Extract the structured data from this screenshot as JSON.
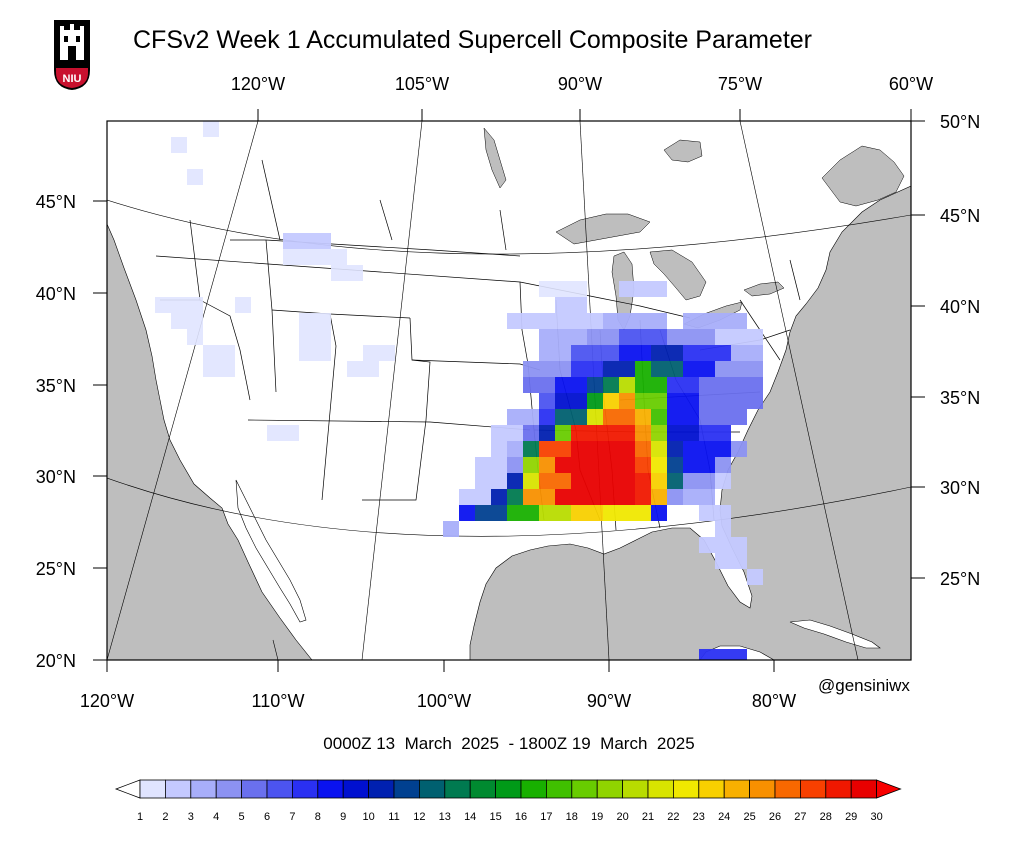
{
  "title": "CFSv2 Week 1 Accumulated Supercell Composite Parameter",
  "logo": {
    "text": "NIU",
    "colors": {
      "bg": "#000000",
      "red": "#c8102e",
      "white": "#ffffff"
    }
  },
  "date_range": "0000Z 13  March  2025  - 1800Z 19  March  2025",
  "credit": "@gensiniwx",
  "axes": {
    "top_lon_labels": [
      "120°W",
      "105°W",
      "90°W",
      "75°W",
      "60°W"
    ],
    "bottom_lon_labels": [
      "120°W",
      "110°W",
      "100°W",
      "90°W",
      "80°W"
    ],
    "left_lat_labels": [
      "45°N",
      "40°N",
      "35°N",
      "30°N",
      "25°N",
      "20°N"
    ],
    "right_lat_labels": [
      "50°N",
      "45°N",
      "40°N",
      "35°N",
      "30°N",
      "25°N"
    ]
  },
  "colorbar": {
    "labels": [
      "1",
      "2",
      "3",
      "4",
      "5",
      "6",
      "7",
      "8",
      "9",
      "10",
      "11",
      "12",
      "13",
      "14",
      "15",
      "16",
      "17",
      "18",
      "19",
      "20",
      "21",
      "22",
      "23",
      "24",
      "25",
      "26",
      "27",
      "28",
      "29",
      "30"
    ],
    "colors": [
      "#e0e4ff",
      "#c4c9ff",
      "#a8aefa",
      "#8c92f2",
      "#6a70ee",
      "#4c54f0",
      "#2a30f2",
      "#0a12f0",
      "#0010d0",
      "#0020b0",
      "#004090",
      "#006070",
      "#007a50",
      "#008a30",
      "#009a18",
      "#18b000",
      "#40c000",
      "#68cc00",
      "#90d400",
      "#b8dc00",
      "#d8e400",
      "#f0e800",
      "#f8d000",
      "#f8b000",
      "#f89000",
      "#f86800",
      "#f84000",
      "#f01800",
      "#e80000",
      "#f80000"
    ],
    "extend": "both"
  },
  "colors": {
    "land": "#ffffff",
    "water": "#bebebe",
    "border": "#000000"
  }
}
